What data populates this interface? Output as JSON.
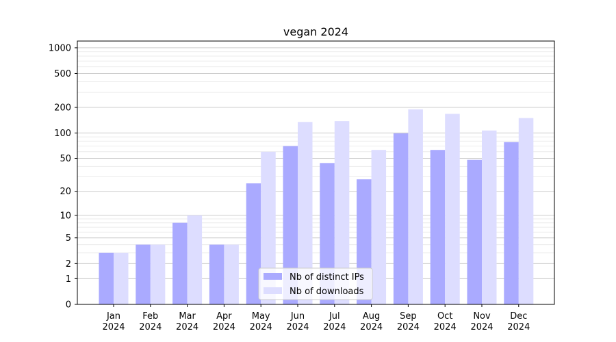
{
  "chart_data": {
    "type": "bar",
    "title": "vegan 2024",
    "xlabel": "",
    "ylabel": "",
    "y_scale": "log(1+y)",
    "ylim": [
      0,
      1200
    ],
    "yticks": [
      0,
      1,
      2,
      5,
      10,
      20,
      50,
      100,
      200,
      500,
      1000
    ],
    "grid": true,
    "legend_position": "bottom-center",
    "categories": [
      [
        "Jan",
        "2024"
      ],
      [
        "Feb",
        "2024"
      ],
      [
        "Mar",
        "2024"
      ],
      [
        "Apr",
        "2024"
      ],
      [
        "May",
        "2024"
      ],
      [
        "Jun",
        "2024"
      ],
      [
        "Jul",
        "2024"
      ],
      [
        "Aug",
        "2024"
      ],
      [
        "Sep",
        "2024"
      ],
      [
        "Oct",
        "2024"
      ],
      [
        "Nov",
        "2024"
      ],
      [
        "Dec",
        "2024"
      ]
    ],
    "series": [
      {
        "name": "Nb of distinct IPs",
        "color": "#aaaaff",
        "values": [
          3,
          4,
          8,
          4,
          25,
          70,
          44,
          28,
          99,
          63,
          48,
          78
        ]
      },
      {
        "name": "Nb of downloads",
        "color": "#ddddff",
        "values": [
          3,
          4,
          10,
          4,
          60,
          135,
          138,
          63,
          190,
          168,
          107,
          150
        ]
      }
    ]
  }
}
